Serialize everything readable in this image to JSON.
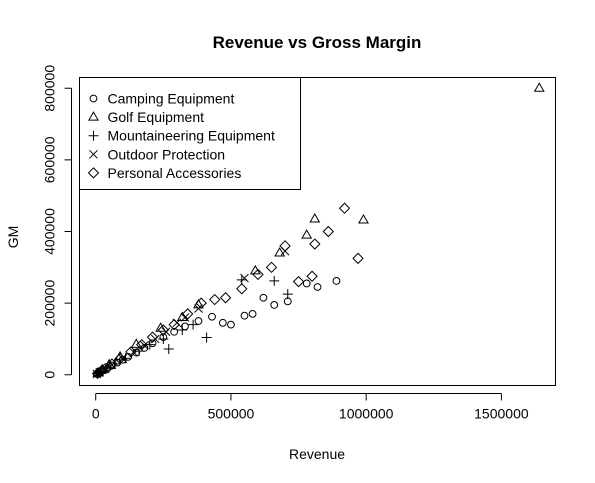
{
  "chart_data": {
    "type": "scatter",
    "title": "Revenue vs Gross Margin",
    "xlabel": "Revenue",
    "ylabel": "GM",
    "xlim": [
      -60000,
      1700000
    ],
    "ylim": [
      -30000,
      830000
    ],
    "x_ticks": [
      0,
      500000,
      1000000,
      1500000
    ],
    "x_tick_labels": [
      "0",
      "500000",
      "1000000",
      "1500000"
    ],
    "y_ticks": [
      0,
      200000,
      400000,
      600000,
      800000
    ],
    "y_tick_labels": [
      "0",
      "200000",
      "400000",
      "600000",
      "800000"
    ],
    "grid": false,
    "legend_position": "top-left",
    "series": [
      {
        "name": "Camping Equipment",
        "marker": "circle",
        "points": [
          [
            5000,
            2000
          ],
          [
            12000,
            5000
          ],
          [
            20000,
            9000
          ],
          [
            30000,
            13000
          ],
          [
            45000,
            19000
          ],
          [
            60000,
            26000
          ],
          [
            80000,
            34000
          ],
          [
            100000,
            42000
          ],
          [
            120000,
            50000
          ],
          [
            150000,
            62000
          ],
          [
            180000,
            75000
          ],
          [
            210000,
            88000
          ],
          [
            250000,
            105000
          ],
          [
            290000,
            120000
          ],
          [
            330000,
            135000
          ],
          [
            380000,
            150000
          ],
          [
            430000,
            162000
          ],
          [
            470000,
            145000
          ],
          [
            500000,
            140000
          ],
          [
            550000,
            165000
          ],
          [
            580000,
            170000
          ],
          [
            620000,
            215000
          ],
          [
            660000,
            195000
          ],
          [
            710000,
            205000
          ],
          [
            780000,
            255000
          ],
          [
            820000,
            245000
          ],
          [
            890000,
            262000
          ]
        ]
      },
      {
        "name": "Golf Equipment",
        "marker": "triangle",
        "points": [
          [
            8000,
            5000
          ],
          [
            25000,
            14000
          ],
          [
            50000,
            28000
          ],
          [
            90000,
            50000
          ],
          [
            150000,
            85000
          ],
          [
            240000,
            130000
          ],
          [
            320000,
            160000
          ],
          [
            380000,
            195000
          ],
          [
            590000,
            290000
          ],
          [
            680000,
            340000
          ],
          [
            780000,
            390000
          ],
          [
            810000,
            435000
          ],
          [
            990000,
            432000
          ],
          [
            1640000,
            800000
          ]
        ]
      },
      {
        "name": "Mountaineering Equipment",
        "marker": "plus",
        "points": [
          [
            6000,
            3000
          ],
          [
            20000,
            9000
          ],
          [
            40000,
            18000
          ],
          [
            70000,
            30000
          ],
          [
            110000,
            46000
          ],
          [
            160000,
            66000
          ],
          [
            200000,
            84000
          ],
          [
            250000,
            100000
          ],
          [
            270000,
            72000
          ],
          [
            320000,
            125000
          ],
          [
            360000,
            140000
          ],
          [
            410000,
            104000
          ],
          [
            540000,
            265000
          ],
          [
            660000,
            262000
          ],
          [
            710000,
            225000
          ]
        ]
      },
      {
        "name": "Outdoor Protection",
        "marker": "cross",
        "points": [
          [
            4000,
            2000
          ],
          [
            15000,
            7000
          ],
          [
            35000,
            16000
          ],
          [
            60000,
            28000
          ],
          [
            100000,
            45000
          ],
          [
            140000,
            63000
          ],
          [
            180000,
            82000
          ],
          [
            220000,
            100000
          ],
          [
            260000,
            120000
          ],
          [
            300000,
            145000
          ],
          [
            330000,
            160000
          ],
          [
            380000,
            185000
          ],
          [
            550000,
            270000
          ],
          [
            700000,
            345000
          ]
        ]
      },
      {
        "name": "Personal Accessories",
        "marker": "diamond",
        "points": [
          [
            7000,
            4000
          ],
          [
            18000,
            9000
          ],
          [
            35000,
            17000
          ],
          [
            60000,
            30000
          ],
          [
            90000,
            45000
          ],
          [
            130000,
            64000
          ],
          [
            170000,
            84000
          ],
          [
            210000,
            105000
          ],
          [
            250000,
            125000
          ],
          [
            290000,
            140000
          ],
          [
            340000,
            170000
          ],
          [
            390000,
            200000
          ],
          [
            440000,
            210000
          ],
          [
            480000,
            215000
          ],
          [
            540000,
            240000
          ],
          [
            600000,
            280000
          ],
          [
            650000,
            300000
          ],
          [
            700000,
            360000
          ],
          [
            750000,
            260000
          ],
          [
            800000,
            275000
          ],
          [
            810000,
            365000
          ],
          [
            860000,
            400000
          ],
          [
            920000,
            465000
          ],
          [
            970000,
            325000
          ]
        ]
      }
    ]
  }
}
